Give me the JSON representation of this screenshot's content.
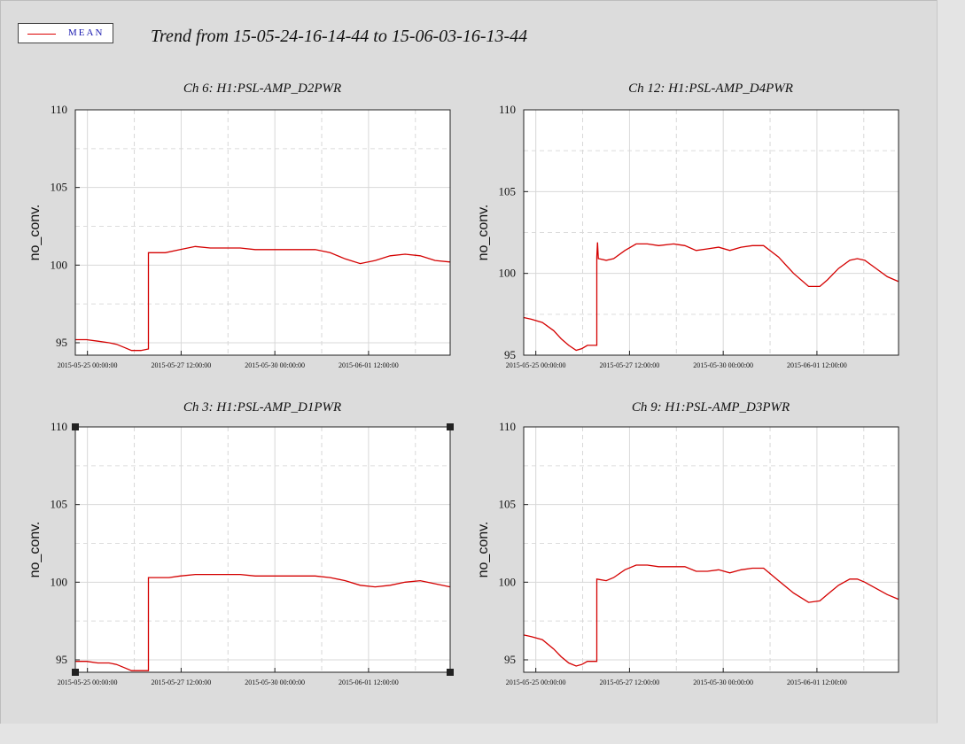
{
  "legend": {
    "label": "MEAN",
    "line_color": "#d40000"
  },
  "title": "Trend from 15-05-24-16-14-44 to 15-06-03-16-13-44",
  "chart_data": [
    {
      "type": "line",
      "title": "Ch 6: H1:PSL-AMP_D2PWR",
      "ylabel": "no_conv.",
      "ylim": [
        94.2,
        110
      ],
      "yticks": [
        95,
        100,
        105,
        110
      ],
      "xlim": [
        0,
        10
      ],
      "xticks": [
        {
          "x": 0.323,
          "label": "2015-05-25 00:00:00"
        },
        {
          "x": 2.823,
          "label": "2015-05-27 12:00:00"
        },
        {
          "x": 5.323,
          "label": "2015-05-30 00:00:00"
        },
        {
          "x": 7.823,
          "label": "2015-06-01 12:00:00"
        }
      ],
      "grid": true,
      "series": [
        {
          "color": "#d40000",
          "x": [
            0,
            0.3,
            0.6,
            0.9,
            1.1,
            1.3,
            1.5,
            1.75,
            1.95,
            1.951,
            2.1,
            2.4,
            2.8,
            3.2,
            3.6,
            4.0,
            4.4,
            4.8,
            5.2,
            5.6,
            6.0,
            6.4,
            6.8,
            7.2,
            7.6,
            8.0,
            8.4,
            8.8,
            9.2,
            9.6,
            10
          ],
          "y": [
            95.2,
            95.2,
            95.1,
            95.0,
            94.9,
            94.7,
            94.5,
            94.5,
            94.6,
            100.8,
            100.8,
            100.8,
            101.0,
            101.2,
            101.1,
            101.1,
            101.1,
            101.0,
            101.0,
            101.0,
            101.0,
            101.0,
            100.8,
            100.4,
            100.1,
            100.3,
            100.6,
            100.7,
            100.6,
            100.3,
            100.2
          ]
        }
      ]
    },
    {
      "type": "line",
      "title": "Ch 12: H1:PSL-AMP_D4PWR",
      "ylabel": "no_conv.",
      "ylim": [
        95,
        110
      ],
      "yticks": [
        95,
        100,
        105,
        110
      ],
      "xlim": [
        0,
        10
      ],
      "xticks": [
        {
          "x": 0.323,
          "label": "2015-05-25 00:00:00"
        },
        {
          "x": 2.823,
          "label": "2015-05-27 12:00:00"
        },
        {
          "x": 5.323,
          "label": "2015-05-30 00:00:00"
        },
        {
          "x": 7.823,
          "label": "2015-06-01 12:00:00"
        }
      ],
      "grid": true,
      "series": [
        {
          "color": "#d40000",
          "x": [
            0,
            0.2,
            0.5,
            0.8,
            1.0,
            1.2,
            1.4,
            1.55,
            1.7,
            1.9,
            1.95,
            1.951,
            1.97,
            1.99,
            2.0,
            2.2,
            2.4,
            2.7,
            3.0,
            3.3,
            3.6,
            4.0,
            4.3,
            4.6,
            4.9,
            5.2,
            5.5,
            5.8,
            6.1,
            6.4,
            6.8,
            7.2,
            7.6,
            7.9,
            8.1,
            8.4,
            8.7,
            8.9,
            9.1,
            9.4,
            9.7,
            10
          ],
          "y": [
            97.3,
            97.2,
            97.0,
            96.5,
            96.0,
            95.6,
            95.3,
            95.4,
            95.6,
            95.6,
            95.6,
            101.0,
            101.9,
            100.9,
            100.9,
            100.8,
            100.9,
            101.4,
            101.8,
            101.8,
            101.7,
            101.8,
            101.7,
            101.4,
            101.5,
            101.6,
            101.4,
            101.6,
            101.7,
            101.7,
            101.0,
            100.0,
            99.2,
            99.2,
            99.6,
            100.3,
            100.8,
            100.9,
            100.8,
            100.3,
            99.8,
            99.5
          ]
        }
      ]
    },
    {
      "type": "line",
      "title": "Ch 3: H1:PSL-AMP_D1PWR",
      "ylabel": "no_conv.",
      "ylim": [
        94.2,
        110
      ],
      "yticks": [
        95,
        100,
        105,
        110
      ],
      "xlim": [
        0,
        10
      ],
      "xticks": [
        {
          "x": 0.323,
          "label": "2015-05-25 00:00:00"
        },
        {
          "x": 2.823,
          "label": "2015-05-27 12:00:00"
        },
        {
          "x": 5.323,
          "label": "2015-05-30 00:00:00"
        },
        {
          "x": 7.823,
          "label": "2015-06-01 12:00:00"
        }
      ],
      "grid": true,
      "series": [
        {
          "color": "#d40000",
          "x": [
            0,
            0.3,
            0.6,
            0.9,
            1.1,
            1.3,
            1.5,
            1.75,
            1.95,
            1.951,
            2.2,
            2.5,
            2.8,
            3.2,
            3.6,
            4.0,
            4.4,
            4.8,
            5.2,
            5.6,
            6.0,
            6.4,
            6.8,
            7.2,
            7.6,
            8.0,
            8.4,
            8.8,
            9.2,
            9.6,
            10
          ],
          "y": [
            94.9,
            94.9,
            94.8,
            94.8,
            94.7,
            94.5,
            94.3,
            94.3,
            94.3,
            100.3,
            100.3,
            100.3,
            100.4,
            100.5,
            100.5,
            100.5,
            100.5,
            100.4,
            100.4,
            100.4,
            100.4,
            100.4,
            100.3,
            100.1,
            99.8,
            99.7,
            99.8,
            100.0,
            100.1,
            99.9,
            99.7
          ]
        }
      ]
    },
    {
      "type": "line",
      "title": "Ch 9: H1:PSL-AMP_D3PWR",
      "ylabel": "no_conv.",
      "ylim": [
        94.2,
        110
      ],
      "yticks": [
        95,
        100,
        105,
        110
      ],
      "xlim": [
        0,
        10
      ],
      "xticks": [
        {
          "x": 0.323,
          "label": "2015-05-25 00:00:00"
        },
        {
          "x": 2.823,
          "label": "2015-05-27 12:00:00"
        },
        {
          "x": 5.323,
          "label": "2015-05-30 00:00:00"
        },
        {
          "x": 7.823,
          "label": "2015-06-01 12:00:00"
        }
      ],
      "grid": true,
      "series": [
        {
          "color": "#d40000",
          "x": [
            0,
            0.2,
            0.5,
            0.8,
            1.0,
            1.2,
            1.4,
            1.55,
            1.7,
            1.9,
            1.95,
            1.951,
            2.2,
            2.4,
            2.7,
            3.0,
            3.3,
            3.6,
            4.0,
            4.3,
            4.6,
            4.9,
            5.2,
            5.5,
            5.8,
            6.1,
            6.4,
            6.8,
            7.2,
            7.6,
            7.9,
            8.1,
            8.4,
            8.7,
            8.9,
            9.1,
            9.4,
            9.7,
            10
          ],
          "y": [
            96.6,
            96.5,
            96.3,
            95.7,
            95.2,
            94.8,
            94.6,
            94.7,
            94.9,
            94.9,
            94.9,
            100.2,
            100.1,
            100.3,
            100.8,
            101.1,
            101.1,
            101.0,
            101.0,
            101.0,
            100.7,
            100.7,
            100.8,
            100.6,
            100.8,
            100.9,
            100.9,
            100.1,
            99.3,
            98.7,
            98.8,
            99.2,
            99.8,
            100.2,
            100.2,
            100.0,
            99.6,
            99.2,
            98.9
          ]
        }
      ]
    }
  ]
}
